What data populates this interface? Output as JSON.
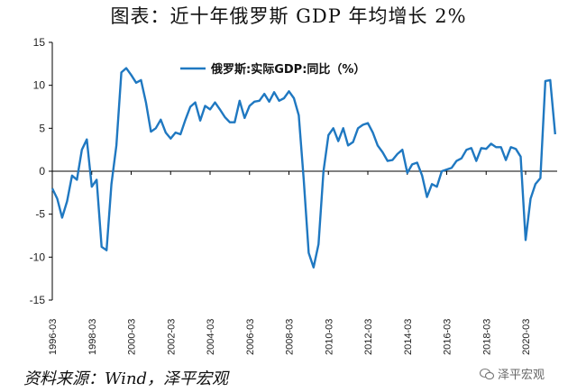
{
  "title": "图表：近十年俄罗斯 GDP 年均增长 2%",
  "source": "资料来源：Wind，泽平宏观",
  "watermark": "泽平宏观",
  "colors": {
    "line": "#1f78c1",
    "axis": "#000000"
  },
  "chart_data": {
    "type": "line",
    "title": "图表：近十年俄罗斯 GDP 年均增长 2%",
    "xlabel": "",
    "ylabel": "",
    "ylim": [
      -15,
      15
    ],
    "yticks": [
      15,
      10,
      5,
      0,
      -5,
      -10,
      -15
    ],
    "xtick_labels": [
      "1996-03",
      "1998-03",
      "2000-03",
      "2002-03",
      "2004-03",
      "2006-03",
      "2008-03",
      "2010-03",
      "2012-03",
      "2014-03",
      "2016-03",
      "2018-03",
      "2020-03"
    ],
    "legend": "俄罗斯:实际GDP:同比（%）",
    "series": [
      {
        "name": "俄罗斯:实际GDP:同比（%）",
        "x": [
          1996.0,
          1996.25,
          1996.5,
          1996.75,
          1997.0,
          1997.25,
          1997.5,
          1997.75,
          1998.0,
          1998.25,
          1998.5,
          1998.75,
          1999.0,
          1999.25,
          1999.5,
          1999.75,
          2000.0,
          2000.25,
          2000.5,
          2000.75,
          2001.0,
          2001.25,
          2001.5,
          2001.75,
          2002.0,
          2002.25,
          2002.5,
          2002.75,
          2003.0,
          2003.25,
          2003.5,
          2003.75,
          2004.0,
          2004.25,
          2004.5,
          2004.75,
          2005.0,
          2005.25,
          2005.5,
          2005.75,
          2006.0,
          2006.25,
          2006.5,
          2006.75,
          2007.0,
          2007.25,
          2007.5,
          2007.75,
          2008.0,
          2008.25,
          2008.5,
          2008.75,
          2009.0,
          2009.25,
          2009.5,
          2009.75,
          2010.0,
          2010.25,
          2010.5,
          2010.75,
          2011.0,
          2011.25,
          2011.5,
          2011.75,
          2012.0,
          2012.25,
          2012.5,
          2012.75,
          2013.0,
          2013.25,
          2013.5,
          2013.75,
          2014.0,
          2014.25,
          2014.5,
          2014.75,
          2015.0,
          2015.25,
          2015.5,
          2015.75,
          2016.0,
          2016.25,
          2016.5,
          2016.75,
          2017.0,
          2017.25,
          2017.5,
          2017.75,
          2018.0,
          2018.25,
          2018.5,
          2018.75,
          2019.0,
          2019.25,
          2019.5,
          2019.75,
          2020.0,
          2020.25,
          2020.5,
          2020.75,
          2021.0,
          2021.25,
          2021.5
        ],
        "values": [
          -2.0,
          -3.2,
          -5.4,
          -3.5,
          -0.5,
          -1.0,
          2.5,
          3.7,
          -1.8,
          -1.0,
          -8.8,
          -9.2,
          -1.5,
          3.0,
          11.5,
          12.0,
          11.2,
          10.3,
          10.6,
          8.0,
          4.6,
          5.0,
          6.0,
          4.5,
          3.8,
          4.5,
          4.3,
          6.0,
          7.5,
          8.0,
          5.9,
          7.6,
          7.2,
          8.0,
          7.2,
          6.3,
          5.7,
          5.7,
          8.2,
          6.2,
          7.6,
          8.1,
          8.2,
          9.0,
          8.1,
          9.2,
          8.2,
          8.5,
          9.3,
          8.5,
          6.5,
          -1.0,
          -9.5,
          -11.2,
          -8.5,
          0.0,
          4.2,
          5.0,
          3.5,
          5.0,
          3.0,
          3.4,
          5.0,
          5.4,
          5.6,
          4.5,
          3.0,
          2.2,
          1.2,
          1.3,
          2.0,
          2.5,
          -0.2,
          0.8,
          1.0,
          -0.5,
          -3.0,
          -1.5,
          -1.8,
          0.0,
          0.2,
          0.4,
          1.2,
          1.5,
          2.5,
          2.7,
          1.2,
          2.7,
          2.6,
          3.2,
          2.8,
          2.8,
          1.3,
          2.8,
          2.6,
          1.7,
          -8.0,
          -3.2,
          -1.5,
          -0.8,
          10.5,
          10.6,
          4.3
        ]
      }
    ]
  }
}
